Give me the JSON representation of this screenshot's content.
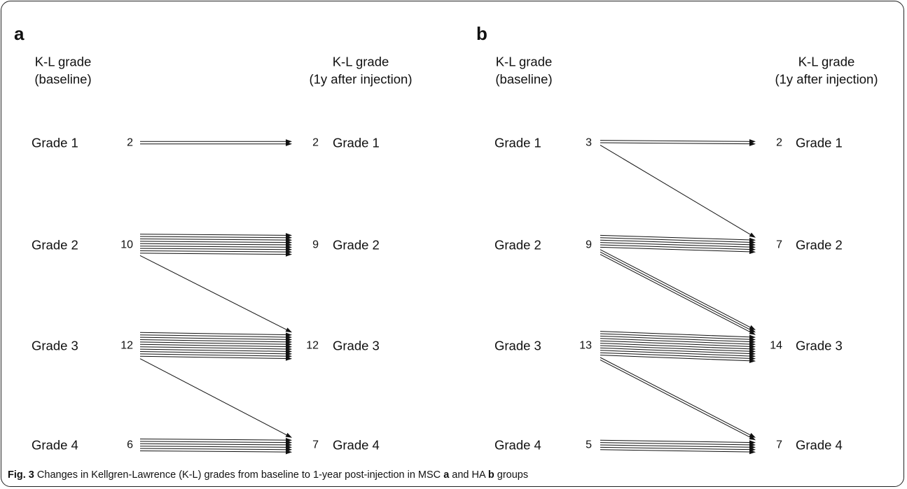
{
  "panels": [
    {
      "letter": "a",
      "left_header": [
        "K-L grade",
        "(baseline)"
      ],
      "right_header": [
        "K-L grade",
        "(1y after injection)"
      ],
      "grades": [
        "Grade 1",
        "Grade 2",
        "Grade 3",
        "Grade 4"
      ],
      "baseline_counts": [
        "2",
        "10",
        "12",
        "6"
      ],
      "followup_counts": [
        "2",
        "9",
        "12",
        "7"
      ],
      "transitions": [
        {
          "from": 1,
          "to": 1,
          "count": 2
        },
        {
          "from": 2,
          "to": 2,
          "count": 9
        },
        {
          "from": 2,
          "to": 3,
          "count": 1
        },
        {
          "from": 3,
          "to": 3,
          "count": 11
        },
        {
          "from": 3,
          "to": 4,
          "count": 1
        },
        {
          "from": 4,
          "to": 4,
          "count": 6
        }
      ]
    },
    {
      "letter": "b",
      "left_header": [
        "K-L grade",
        "(baseline)"
      ],
      "right_header": [
        "K-L grade",
        "(1y after injection)"
      ],
      "grades": [
        "Grade 1",
        "Grade 2",
        "Grade 3",
        "Grade 4"
      ],
      "baseline_counts": [
        "3",
        "9",
        "13",
        "5"
      ],
      "followup_counts": [
        "2",
        "7",
        "14",
        "7"
      ],
      "transitions": [
        {
          "from": 1,
          "to": 1,
          "count": 2
        },
        {
          "from": 1,
          "to": 2,
          "count": 1
        },
        {
          "from": 2,
          "to": 2,
          "count": 6
        },
        {
          "from": 2,
          "to": 3,
          "count": 3
        },
        {
          "from": 3,
          "to": 3,
          "count": 11
        },
        {
          "from": 3,
          "to": 4,
          "count": 2
        },
        {
          "from": 4,
          "to": 4,
          "count": 5
        }
      ]
    }
  ],
  "caption": {
    "label": "Fig. 3",
    "text_1": " Changes in Kellgren-Lawrence (K-L) grades from baseline to 1-year post-injection in MSC ",
    "bold_1": "a",
    "text_2": " and HA ",
    "bold_2": "b",
    "text_3": " groups"
  }
}
